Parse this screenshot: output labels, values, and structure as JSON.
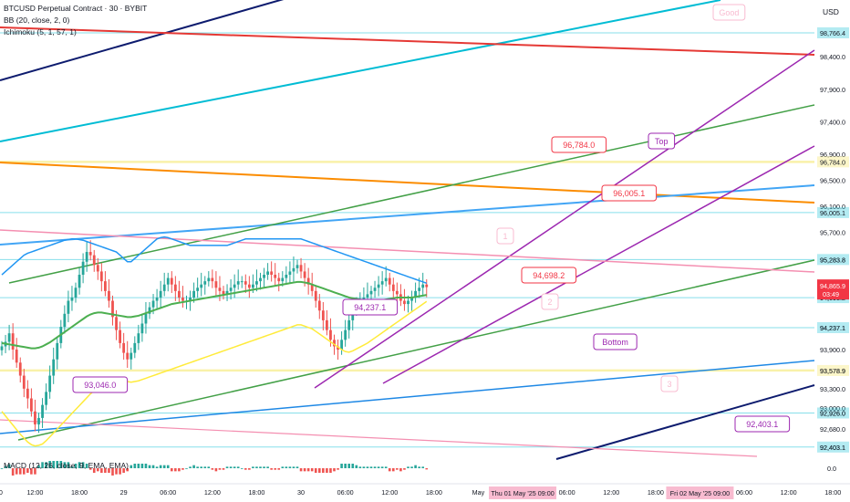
{
  "header": {
    "symbol_line": "BTCUSD Perpetual Contract · 30 · BYBIT",
    "bb_line": "BB (20, close, 2, 0)",
    "ichimoku_line": "Ichimoku (5, 1, 57, 1)",
    "macd_line": "MACD (12, 26, close, 9, EMA, EMA)",
    "currency": "USD"
  },
  "chart_data": {
    "type": "candlestick",
    "title": "BTCUSD Perpetual Contract · 30 · BYBIT",
    "xlabel": "",
    "ylabel": "USD",
    "y_axis": {
      "min": 92400,
      "max": 98850,
      "ticks": [
        98400,
        97900,
        97400,
        96900,
        96500,
        96100,
        95700,
        95283.8,
        94900,
        94698.2,
        94237.1,
        93900,
        93578.9,
        93300,
        93000,
        92926.0,
        92680,
        92403.1
      ],
      "tick_labels": [
        "98,400.0",
        "97,900.0",
        "97,400.0",
        "96,900.0",
        "96,500.0",
        "96,100.0",
        "95,700.0",
        "95,283.8",
        "94,900.0",
        "94,698.2",
        "94,237.1",
        "93,900.0",
        "93,578.9",
        "93,300.0",
        "93,000.0",
        "92,926.0",
        "92,680.0",
        "92,403.1"
      ],
      "highlight_labels": [
        {
          "value": 98766.4,
          "label": "98,766.4",
          "color": "#26c6da"
        },
        {
          "value": 96784.0,
          "label": "96,784.0",
          "color": "#f5e663"
        },
        {
          "value": 96005.1,
          "label": "96,005.1",
          "color": "#26c6da"
        },
        {
          "value": 95283.8,
          "label": "95,283.8",
          "color": "#26c6da"
        },
        {
          "value": 94698.2,
          "label": "94,698.2",
          "color": "#26c6da"
        },
        {
          "value": 94237.1,
          "label": "94,237.1",
          "color": "#26c6da"
        },
        {
          "value": 93578.9,
          "label": "93,578.9",
          "color": "#f5e663"
        },
        {
          "value": 92926.0,
          "label": "92,926.0",
          "color": "#26c6da"
        },
        {
          "value": 92403.1,
          "label": "92,403.1",
          "color": "#26c6da"
        }
      ],
      "last_price": {
        "value": 94865.9,
        "label": "94,865.9",
        "countdown": "03:49",
        "color": "#f23645"
      },
      "macd_tick": "0.0"
    },
    "x_axis": {
      "ticks": [
        {
          "index": -2,
          "label": "18:00"
        },
        {
          "index": 9,
          "label": "12:00"
        },
        {
          "index": 21,
          "label": "18:00"
        },
        {
          "index": 33,
          "label": "29"
        },
        {
          "index": 45,
          "label": "06:00"
        },
        {
          "index": 57,
          "label": "12:00"
        },
        {
          "index": 69,
          "label": "18:00"
        },
        {
          "index": 81,
          "label": "30"
        },
        {
          "index": 93,
          "label": "06:00"
        },
        {
          "index": 105,
          "label": "12:00"
        },
        {
          "index": 117,
          "label": "18:00"
        },
        {
          "index": 129,
          "label": "May"
        },
        {
          "index": 153,
          "label": "06:00"
        },
        {
          "index": 165,
          "label": "12:00"
        },
        {
          "index": 177,
          "label": "18:00"
        },
        {
          "index": 201,
          "label": "06:00"
        },
        {
          "index": 213,
          "label": "12:00"
        },
        {
          "index": 225,
          "label": "18:00"
        }
      ],
      "plain_labels": [
        {
          "index": 189,
          "label": "2"
        }
      ],
      "highlight_labels": [
        {
          "index": 141,
          "label": "Thu 01 May '25   09:00"
        },
        {
          "index": 189,
          "label": "Fri 02 May '25   09:00"
        }
      ]
    },
    "close": [
      93950,
      94020,
      94150,
      93900,
      93700,
      93500,
      93300,
      93150,
      92950,
      92750,
      92850,
      93050,
      93250,
      93500,
      93750,
      94000,
      94250,
      94450,
      94650,
      94700,
      94850,
      95050,
      95250,
      95400,
      95350,
      95200,
      95100,
      94950,
      94800,
      94650,
      94400,
      94200,
      94000,
      93850,
      93750,
      93850,
      94000,
      94150,
      94300,
      94450,
      94550,
      94650,
      94700,
      94800,
      94900,
      95000,
      94900,
      94800,
      94700,
      94650,
      94650,
      94700,
      94800,
      94850,
      94900,
      94950,
      95000,
      94950,
      94850,
      94800,
      94750,
      94800,
      94850,
      94900,
      94950,
      94950,
      94900,
      94850,
      94900,
      94950,
      95000,
      95050,
      95100,
      95050,
      95000,
      94950,
      95000,
      95050,
      95100,
      95150,
      95200,
      95100,
      95000,
      94900,
      94800,
      94650,
      94500,
      94350,
      94200,
      94050,
      93950,
      93900,
      94050,
      94200,
      94350,
      94500,
      94600,
      94650,
      94700,
      94750,
      94800,
      94850,
      94900,
      94950,
      95000,
      94900,
      94800,
      94750,
      94650,
      94600,
      94650,
      94700,
      94800,
      94850,
      94900,
      94860
    ],
    "bollinger": {
      "upper": [
        95050,
        95100,
        95150,
        95200,
        95250,
        95300,
        95350,
        95380,
        95400,
        95420,
        95440,
        95460,
        95480,
        95500,
        95520,
        95540,
        95560,
        95580,
        95590,
        95600,
        95600,
        95590,
        95580,
        95560,
        95540,
        95520,
        95500,
        95480,
        95460,
        95440,
        95420,
        95400,
        95350,
        95300,
        95250,
        95250,
        95300,
        95350,
        95400,
        95450,
        95500,
        95550,
        95600,
        95620,
        95630,
        95620,
        95600,
        95580,
        95560,
        95540,
        95520,
        95500,
        95500,
        95500,
        95500,
        95500,
        95500,
        95500,
        95500,
        95500,
        95500,
        95500,
        95520,
        95540,
        95560,
        95580,
        95600,
        95600,
        95600,
        95600,
        95600,
        95600,
        95600,
        95600,
        95600,
        95600,
        95600,
        95600,
        95600,
        95600,
        95600,
        95600,
        95580,
        95560,
        95540,
        95520,
        95500,
        95480,
        95460,
        95440,
        95420,
        95400,
        95380,
        95360,
        95340,
        95320,
        95300,
        95280,
        95260,
        95240,
        95220,
        95200,
        95180,
        95160,
        95140,
        95120,
        95100,
        95080,
        95060,
        95040,
        95020,
        95000,
        94980,
        94960,
        94940,
        94920
      ],
      "middle": [
        94000,
        93990,
        93980,
        93970,
        93960,
        93950,
        93940,
        93930,
        93920,
        93920,
        93930,
        93950,
        93980,
        94010,
        94050,
        94090,
        94130,
        94170,
        94210,
        94250,
        94290,
        94330,
        94370,
        94410,
        94440,
        94460,
        94470,
        94470,
        94460,
        94450,
        94440,
        94430,
        94420,
        94410,
        94400,
        94400,
        94410,
        94420,
        94440,
        94460,
        94480,
        94500,
        94520,
        94540,
        94560,
        94580,
        94600,
        94610,
        94620,
        94630,
        94640,
        94650,
        94660,
        94670,
        94680,
        94690,
        94700,
        94710,
        94720,
        94730,
        94740,
        94750,
        94760,
        94770,
        94780,
        94790,
        94800,
        94810,
        94820,
        94830,
        94840,
        94850,
        94860,
        94870,
        94880,
        94890,
        94900,
        94910,
        94920,
        94930,
        94940,
        94940,
        94930,
        94920,
        94900,
        94880,
        94860,
        94840,
        94820,
        94800,
        94780,
        94760,
        94740,
        94720,
        94700,
        94690,
        94680,
        94670,
        94660,
        94650,
        94650,
        94650,
        94650,
        94660,
        94670,
        94680,
        94690,
        94700,
        94700,
        94700,
        94700,
        94700,
        94710,
        94720,
        94730,
        94740
      ],
      "lower": [
        92950,
        92880,
        92810,
        92740,
        92670,
        92600,
        92540,
        92480,
        92440,
        92420,
        92430,
        92450,
        92500,
        92560,
        92620,
        92680,
        92740,
        92800,
        92860,
        92920,
        92980,
        93040,
        93100,
        93160,
        93220,
        93270,
        93320,
        93360,
        93400,
        93430,
        93440,
        93440,
        93430,
        93420,
        93410,
        93400,
        93410,
        93420,
        93440,
        93460,
        93480,
        93500,
        93520,
        93540,
        93560,
        93580,
        93600,
        93620,
        93640,
        93660,
        93680,
        93700,
        93720,
        93740,
        93760,
        93780,
        93800,
        93820,
        93840,
        93860,
        93880,
        93900,
        93920,
        93940,
        93960,
        93980,
        94000,
        94020,
        94040,
        94060,
        94080,
        94100,
        94120,
        94140,
        94160,
        94180,
        94200,
        94220,
        94240,
        94260,
        94280,
        94280,
        94260,
        94240,
        94220,
        94180,
        94140,
        94100,
        94060,
        94020,
        93980,
        93940,
        93900,
        93870,
        93860,
        93880,
        93910,
        93940,
        93970,
        94000,
        94040,
        94080,
        94120,
        94160,
        94200,
        94240,
        94280,
        94320,
        94360,
        94400,
        94440,
        94480,
        94520,
        94560,
        94600,
        94640
      ]
    },
    "annotations": [
      {
        "label": "96,784.0",
        "color": "#f23645"
      },
      {
        "label": "96,005.1",
        "color": "#f23645"
      },
      {
        "label": "94,698.2",
        "color": "#f23645"
      },
      {
        "label": "94,237.1",
        "color": "#9c27b0"
      },
      {
        "label": "93,046.0",
        "color": "#9c27b0"
      },
      {
        "label": "92,403.1",
        "color": "#9c27b0"
      },
      {
        "label": "Top",
        "color": "#9c27b0"
      },
      {
        "label": "Bottom",
        "color": "#9c27b0"
      },
      {
        "label": "Good",
        "color": "#f8bbd0"
      },
      {
        "label": "1",
        "color": "#f8bbd0"
      },
      {
        "label": "2",
        "color": "#f8bbd0"
      },
      {
        "label": "3",
        "color": "#f8bbd0"
      }
    ],
    "grid": false,
    "legend": "top-left"
  },
  "colors": {
    "up": "#26a69a",
    "down": "#ef5350",
    "bb_upper": "#2196f3",
    "bb_middle": "#4caf50",
    "bb_lower": "#ffeb3b"
  }
}
